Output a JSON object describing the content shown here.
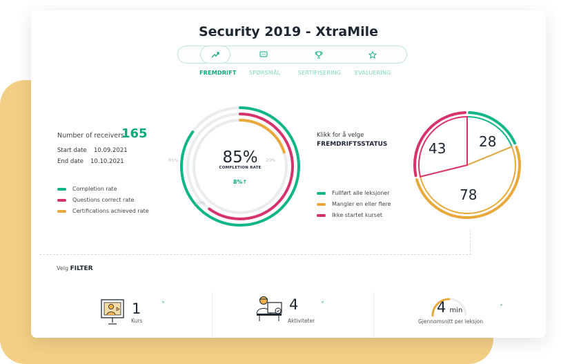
{
  "title": "Security 2019 - XtraMile",
  "tabs": [
    {
      "label": "FREMDRIFT",
      "icon": "trend-up-icon",
      "active": true
    },
    {
      "label": "SPØRSMÅL",
      "icon": "chat-icon",
      "active": false
    },
    {
      "label": "SERTIFISERING",
      "icon": "trophy-icon",
      "active": false
    },
    {
      "label": "EVALUERING",
      "icon": "star-icon",
      "active": false
    }
  ],
  "summary": {
    "receivers_label": "Number of receivers",
    "receivers_value": "165",
    "start_label": "Start date",
    "start_value": "10.09.2021",
    "end_label": "End date",
    "end_value": "10.10.2021"
  },
  "ring_legend": [
    {
      "label": "Completion rate",
      "color": "#10b588"
    },
    {
      "label": "Questions correct rate",
      "color": "#d6336c"
    },
    {
      "label": "Certifications achieved rate",
      "color": "#e9a93a"
    }
  ],
  "ring": {
    "percent_text": "85%",
    "caption": "COMPLETION RATE",
    "delta": "8%↑",
    "tick_left": "85%",
    "tick_right": "20%",
    "tick_bottom": "60%",
    "completion": 0.85,
    "questions": 0.6,
    "certifications": 0.2
  },
  "status": {
    "hint": "Klikk for å velge",
    "title": "FREMDRIFTSSTATUS",
    "legend": [
      {
        "label": "Fullført alle leksjoner",
        "color": "#10b588"
      },
      {
        "label": "Mangler en eller flere",
        "color": "#e9a93a"
      },
      {
        "label": "Ikke startet kurset",
        "color": "#d6336c"
      }
    ]
  },
  "chart_data": {
    "type": "pie",
    "categories": [
      "Fullført alle leksjoner",
      "Mangler en eller flere",
      "Ikke startet kurset"
    ],
    "values": [
      28,
      78,
      43
    ],
    "colors": [
      "#10b588",
      "#e9a93a",
      "#d6336c"
    ]
  },
  "filter": {
    "prefix": "Velg",
    "label": "FILTER",
    "items": [
      {
        "value": "1",
        "unit": "",
        "sub": "Kurs",
        "icon": "presentation-icon",
        "chevron": "˅"
      },
      {
        "value": "4",
        "unit": "",
        "sub": "Aktiviteter",
        "icon": "person-at-computer-icon",
        "chevron": "˅"
      },
      {
        "value": "4",
        "unit": "min",
        "sub": "Gjennomsnitt per leksjon",
        "icon": "gauge-icon",
        "chevron": "˄"
      }
    ]
  }
}
